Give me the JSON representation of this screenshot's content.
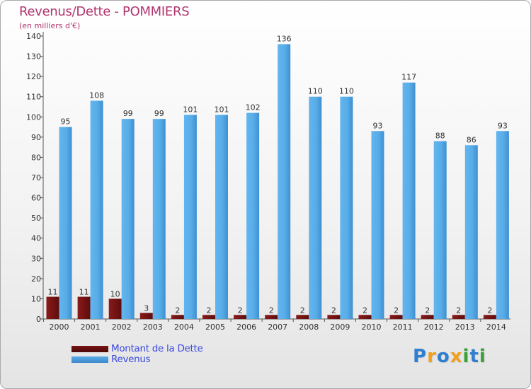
{
  "title": "Revenus/Dette - POMMIERS",
  "subtitle": "(en milliers d'€)",
  "colors": {
    "title": "#b0356f",
    "revenus": "#5aaee8",
    "dette": "#7a1414",
    "legend_text": "#3c4adf"
  },
  "legend": [
    {
      "label": "Montant de la Dette",
      "color": "#7a1414"
    },
    {
      "label": "Revenus",
      "color": "#4f9fdf"
    }
  ],
  "logo": {
    "text": "Proxiti"
  },
  "chart_data": {
    "type": "bar",
    "categories": [
      "2000",
      "2001",
      "2002",
      "2003",
      "2004",
      "2005",
      "2006",
      "2007",
      "2008",
      "2009",
      "2010",
      "2011",
      "2012",
      "2013",
      "2014"
    ],
    "series": [
      {
        "name": "Montant de la Dette",
        "values": [
          11,
          11,
          10,
          3,
          2,
          2,
          2,
          2,
          2,
          2,
          2,
          2,
          2,
          2,
          2
        ]
      },
      {
        "name": "Revenus",
        "values": [
          95,
          108,
          99,
          99,
          101,
          101,
          102,
          136,
          110,
          110,
          93,
          117,
          88,
          86,
          93
        ]
      }
    ],
    "yticks": [
      0,
      10,
      20,
      30,
      40,
      50,
      60,
      70,
      80,
      90,
      100,
      110,
      120,
      130,
      140
    ],
    "ylim": [
      0,
      140
    ],
    "grid": false
  }
}
